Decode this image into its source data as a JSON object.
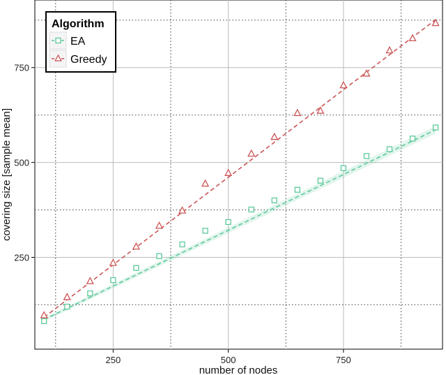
{
  "chart_data": {
    "type": "line",
    "xlabel": "number of nodes",
    "ylabel": "covering size [sample mean]",
    "xlim": [
      80,
      965
    ],
    "ylim": [
      8,
      928
    ],
    "x_ticks": [
      250,
      500,
      750
    ],
    "y_ticks": [
      250,
      500,
      750
    ],
    "x_minor_grid": [
      125,
      375,
      625,
      875
    ],
    "y_minor_grid": [
      125,
      375,
      625,
      875
    ],
    "grid": true,
    "legend": {
      "title": "Algorithm",
      "position": "top-left"
    },
    "series": [
      {
        "name": "EA",
        "color": "#5cc99a",
        "marker": "square",
        "x": [
          100,
          150,
          200,
          250,
          300,
          350,
          400,
          450,
          500,
          550,
          600,
          650,
          700,
          750,
          800,
          850,
          900,
          950
        ],
        "y": [
          82,
          120,
          155,
          190,
          222,
          253,
          284,
          320,
          343,
          376,
          400,
          428,
          452,
          485,
          517,
          535,
          563,
          592
        ],
        "trend": [
          [
            100,
            86
          ],
          [
            950,
            586
          ]
        ]
      },
      {
        "name": "Greedy",
        "color": "#cc5555",
        "marker": "triangle",
        "x": [
          100,
          150,
          200,
          250,
          300,
          350,
          400,
          450,
          500,
          550,
          600,
          650,
          700,
          750,
          800,
          850,
          900,
          950
        ],
        "y": [
          97,
          145,
          187,
          235,
          278,
          333,
          373,
          444,
          472,
          523,
          567,
          630,
          636,
          703,
          734,
          795,
          827,
          867
        ],
        "trend": [
          [
            100,
            92
          ],
          [
            950,
            876
          ]
        ]
      }
    ]
  }
}
